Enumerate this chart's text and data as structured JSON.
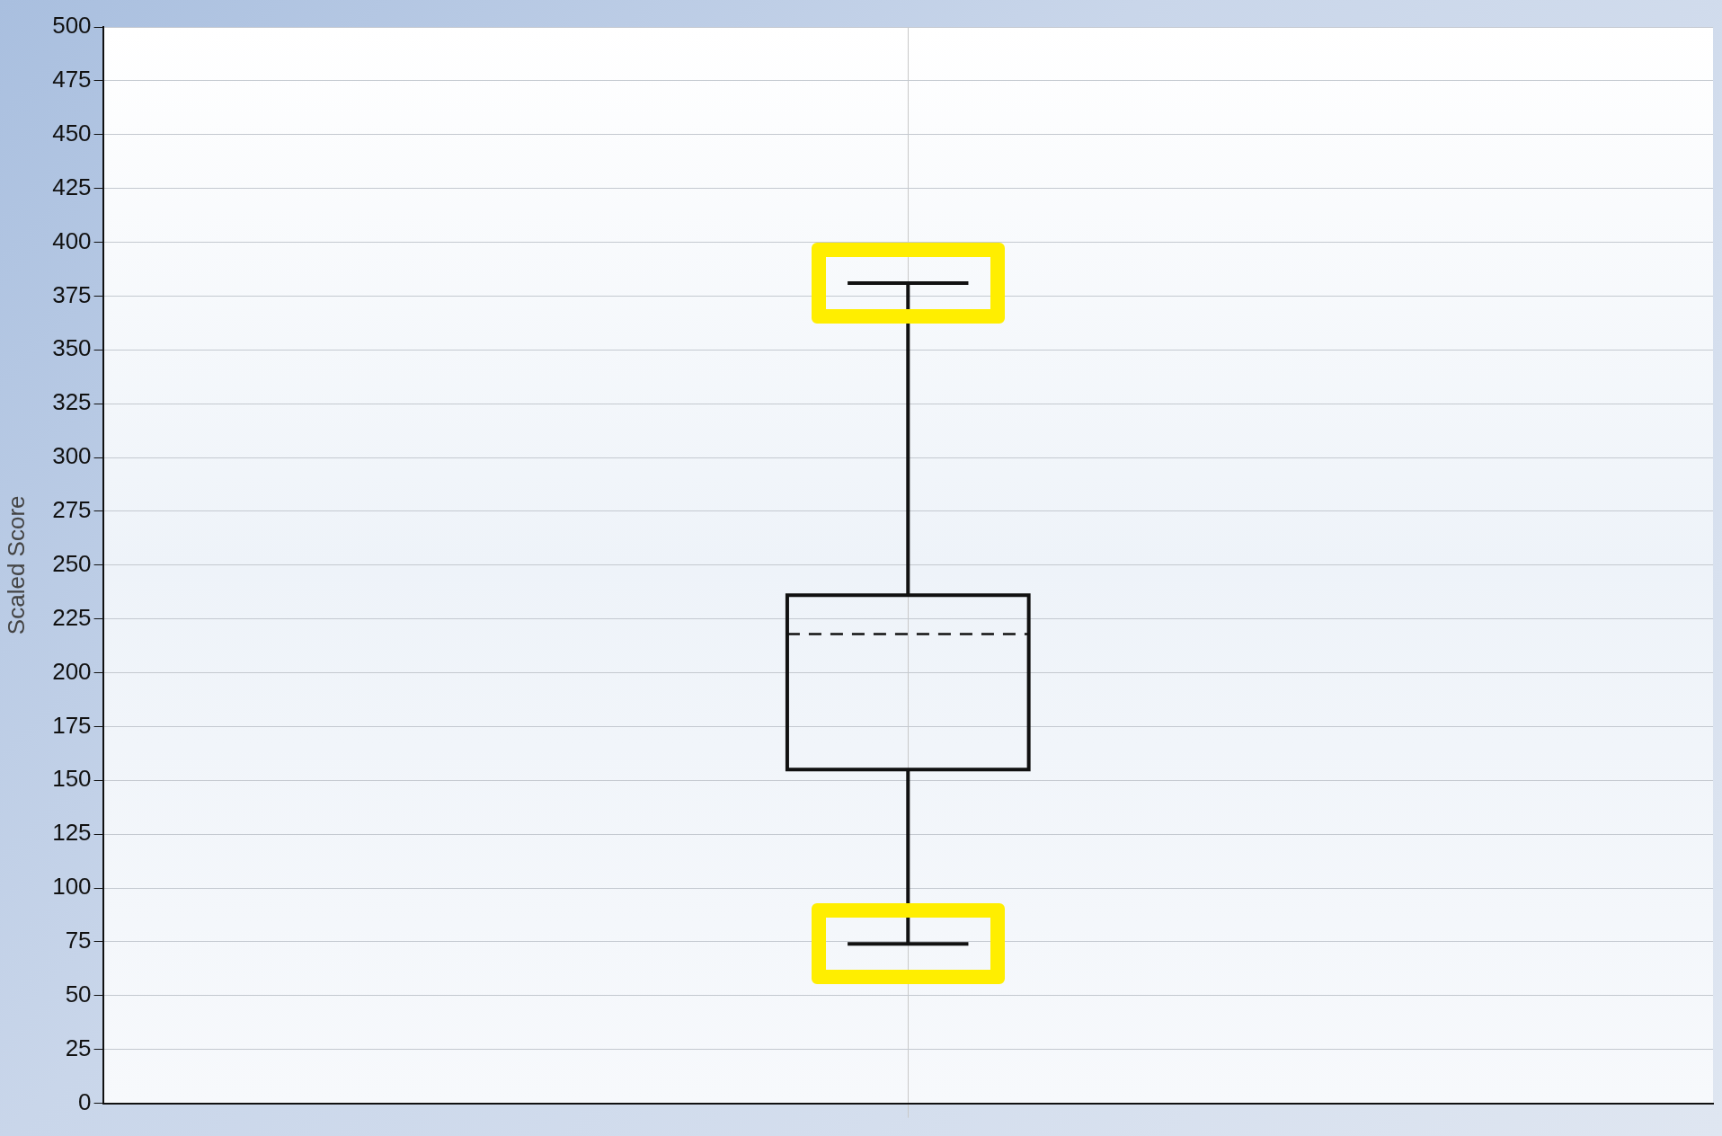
{
  "chart_data": {
    "type": "box",
    "ylabel": "Scaled Score",
    "categories": [
      null
    ],
    "boxes": [
      {
        "low": 74,
        "q1": 155,
        "median": 218,
        "q3": 236,
        "high": 381
      }
    ],
    "ylim": [
      0,
      500
    ],
    "yticks": [
      0,
      25,
      50,
      75,
      100,
      125,
      150,
      175,
      200,
      225,
      250,
      275,
      300,
      325,
      350,
      375,
      400,
      425,
      450,
      475,
      500
    ],
    "grid": true,
    "line_style": "dashed"
  }
}
